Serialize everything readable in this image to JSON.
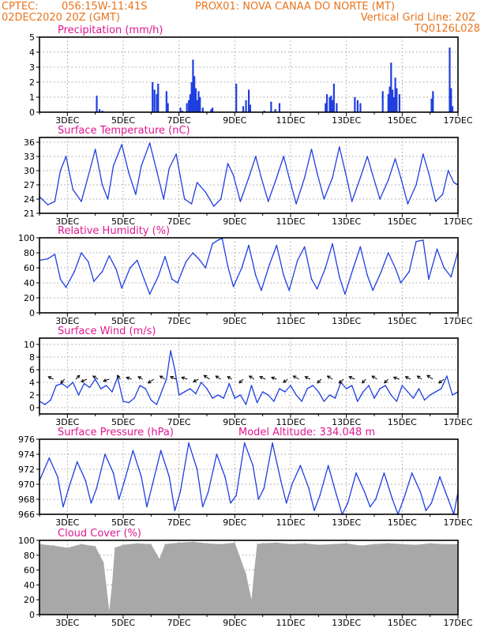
{
  "header": {
    "org": "CPTEC:",
    "coords": "056:15W-11:41S",
    "station": "PROX01: NOVA CANAA DO NORTE (MT)",
    "datetime": "02DEC2020 20Z (GMT)",
    "grid_note": "Vertical Grid Line: 20Z",
    "code": "TQ0126L028"
  },
  "colors": {
    "header": "#e8741c",
    "title": "#e01890",
    "series": "#1f3fe0",
    "cloud": "#a8a8a8",
    "grid": "#a0a0a0"
  },
  "chart_data": [
    {
      "type": "bar",
      "title": "Precipitation (mm/h)",
      "xlabel": "",
      "ylabel": "",
      "x_range": [
        2.0,
        17.0
      ],
      "ylim": [
        0,
        5
      ],
      "yticks": [
        0,
        1,
        2,
        3,
        4,
        5
      ],
      "xticks": [
        "3DEC",
        "5DEC",
        "7DEC",
        "9DEC",
        "11DEC",
        "13DEC",
        "15DEC",
        "17DEC"
      ],
      "grid": true,
      "x": [
        4.05,
        4.15,
        4.25,
        6.05,
        6.12,
        6.2,
        6.25,
        6.55,
        6.6,
        7.05,
        7.12,
        7.28,
        7.35,
        7.4,
        7.45,
        7.5,
        7.55,
        7.6,
        7.65,
        7.7,
        7.75,
        7.85,
        8.15,
        8.2,
        9.05,
        9.3,
        9.4,
        9.5,
        9.55,
        10.05,
        10.3,
        10.45,
        10.6,
        12.25,
        12.3,
        12.4,
        12.45,
        12.5,
        12.55,
        12.65,
        13.3,
        13.4,
        13.5,
        14.3,
        14.5,
        14.55,
        14.6,
        14.65,
        14.7,
        14.75,
        14.8,
        14.9,
        16.05,
        16.1,
        16.7,
        16.75,
        16.8
      ],
      "values": [
        1.1,
        0.2,
        0.1,
        2.0,
        1.5,
        1.2,
        1.9,
        1.4,
        0.6,
        0.3,
        0.1,
        0.6,
        0.8,
        1.2,
        2.0,
        3.5,
        2.4,
        1.6,
        0.8,
        1.4,
        1.0,
        0.3,
        0.2,
        0.3,
        1.9,
        0.4,
        0.8,
        1.5,
        0.5,
        0.1,
        0.7,
        0.2,
        0.6,
        0.6,
        1.2,
        1.0,
        1.1,
        0.8,
        1.9,
        0.6,
        1.0,
        0.8,
        0.6,
        1.4,
        1.2,
        1.7,
        3.3,
        1.5,
        1.0,
        2.3,
        1.6,
        1.2,
        0.9,
        1.4,
        4.3,
        1.6,
        0.4
      ]
    },
    {
      "type": "line",
      "title": "Surface Temperature (nC)",
      "xlabel": "",
      "ylabel": "",
      "x_range": [
        2.0,
        17.0
      ],
      "ylim": [
        21,
        37
      ],
      "yticks": [
        21,
        24,
        27,
        30,
        33,
        36
      ],
      "xticks": [
        "3DEC",
        "5DEC",
        "7DEC",
        "9DEC",
        "11DEC",
        "13DEC",
        "15DEC",
        "17DEC"
      ],
      "grid": true,
      "x": [
        2.0,
        2.3,
        2.55,
        2.75,
        2.95,
        3.2,
        3.5,
        3.8,
        4.0,
        4.25,
        4.45,
        4.65,
        4.95,
        5.2,
        5.45,
        5.65,
        5.95,
        6.2,
        6.45,
        6.65,
        6.9,
        7.2,
        7.45,
        7.65,
        7.95,
        8.25,
        8.5,
        8.75,
        8.95,
        9.2,
        9.5,
        9.75,
        9.95,
        10.2,
        10.5,
        10.75,
        10.95,
        11.2,
        11.5,
        11.75,
        11.95,
        12.2,
        12.5,
        12.75,
        12.95,
        13.2,
        13.5,
        13.75,
        13.95,
        14.2,
        14.5,
        14.75,
        14.95,
        15.2,
        15.5,
        15.75,
        15.95,
        16.2,
        16.45,
        16.65,
        16.85,
        17.0
      ],
      "values": [
        24.5,
        22.8,
        23.5,
        30.0,
        33.0,
        26.0,
        23.5,
        30.0,
        34.5,
        27.0,
        24.0,
        31.0,
        35.5,
        29.5,
        25.0,
        31.0,
        35.8,
        30.0,
        24.0,
        30.5,
        33.5,
        24.0,
        23.0,
        27.5,
        25.5,
        22.5,
        24.0,
        31.5,
        29.0,
        23.5,
        28.5,
        33.0,
        28.5,
        23.5,
        28.5,
        33.0,
        28.5,
        23.0,
        28.5,
        34.5,
        29.5,
        24.0,
        28.5,
        35.0,
        30.0,
        23.5,
        28.5,
        33.0,
        29.0,
        24.0,
        28.0,
        32.5,
        28.5,
        23.0,
        27.0,
        33.5,
        29.5,
        23.5,
        25.0,
        30.0,
        27.5,
        27.0
      ]
    },
    {
      "type": "line",
      "title": "Relative Humidity (%)",
      "xlabel": "",
      "ylabel": "",
      "x_range": [
        2.0,
        17.0
      ],
      "ylim": [
        0,
        100
      ],
      "yticks": [
        0,
        20,
        40,
        60,
        80,
        100
      ],
      "xticks": [
        "3DEC",
        "5DEC",
        "7DEC",
        "9DEC",
        "11DEC",
        "13DEC",
        "15DEC",
        "17DEC"
      ],
      "grid": true,
      "x": [
        2.0,
        2.3,
        2.55,
        2.75,
        2.95,
        3.25,
        3.5,
        3.75,
        3.95,
        4.25,
        4.5,
        4.75,
        4.95,
        5.25,
        5.5,
        5.75,
        5.95,
        6.25,
        6.5,
        6.75,
        6.95,
        7.25,
        7.5,
        7.75,
        7.95,
        8.2,
        8.4,
        8.55,
        8.75,
        8.95,
        9.25,
        9.5,
        9.75,
        9.95,
        10.25,
        10.5,
        10.75,
        10.95,
        11.25,
        11.5,
        11.75,
        11.95,
        12.25,
        12.5,
        12.75,
        12.95,
        13.25,
        13.5,
        13.75,
        13.95,
        14.25,
        14.5,
        14.75,
        14.95,
        15.25,
        15.5,
        15.75,
        15.95,
        16.25,
        16.5,
        16.75,
        17.0
      ],
      "values": [
        70,
        72,
        78,
        45,
        34,
        55,
        80,
        68,
        42,
        55,
        76,
        58,
        33,
        60,
        70,
        45,
        25,
        48,
        75,
        45,
        40,
        68,
        80,
        70,
        60,
        92,
        97,
        99,
        62,
        35,
        60,
        90,
        50,
        30,
        65,
        90,
        50,
        30,
        70,
        88,
        45,
        32,
        60,
        92,
        48,
        25,
        60,
        88,
        50,
        30,
        55,
        80,
        60,
        40,
        55,
        95,
        97,
        45,
        85,
        60,
        48,
        82
      ]
    },
    {
      "type": "line",
      "title": "Surface Wind (m/s)",
      "xlabel": "",
      "ylabel": "",
      "x_range": [
        2.0,
        17.0
      ],
      "ylim": [
        -1,
        11
      ],
      "yticks": [
        0,
        2,
        4,
        6,
        8,
        10
      ],
      "xticks": [
        "3DEC",
        "5DEC",
        "7DEC",
        "9DEC",
        "11DEC",
        "13DEC",
        "15DEC",
        "17DEC"
      ],
      "grid": true,
      "x": [
        2.0,
        2.2,
        2.4,
        2.6,
        2.8,
        3.0,
        3.2,
        3.4,
        3.6,
        3.8,
        4.0,
        4.2,
        4.4,
        4.6,
        4.8,
        5.0,
        5.2,
        5.4,
        5.6,
        5.8,
        6.0,
        6.2,
        6.4,
        6.55,
        6.7,
        6.85,
        7.0,
        7.2,
        7.4,
        7.6,
        7.8,
        8.0,
        8.2,
        8.4,
        8.6,
        8.8,
        9.0,
        9.2,
        9.4,
        9.6,
        9.8,
        10.0,
        10.2,
        10.4,
        10.6,
        10.8,
        11.0,
        11.2,
        11.4,
        11.6,
        11.8,
        12.0,
        12.2,
        12.4,
        12.6,
        12.8,
        13.0,
        13.2,
        13.4,
        13.6,
        13.8,
        14.0,
        14.2,
        14.4,
        14.6,
        14.8,
        15.0,
        15.2,
        15.4,
        15.6,
        15.8,
        16.0,
        16.2,
        16.4,
        16.6,
        16.8,
        17.0
      ],
      "values": [
        1.0,
        0.5,
        1.2,
        3.5,
        3.8,
        3.2,
        4.0,
        2.0,
        3.8,
        3.2,
        4.5,
        3.0,
        3.5,
        2.5,
        4.8,
        1.0,
        0.8,
        1.5,
        3.5,
        3.0,
        1.2,
        0.5,
        2.8,
        4.5,
        9.0,
        6.0,
        2.0,
        2.5,
        3.0,
        2.2,
        4.0,
        3.0,
        1.5,
        2.0,
        1.5,
        3.8,
        1.5,
        2.0,
        0.5,
        3.5,
        0.8,
        2.5,
        2.0,
        1.0,
        3.0,
        2.5,
        3.5,
        2.0,
        1.0,
        3.0,
        3.5,
        2.5,
        1.0,
        2.0,
        1.5,
        4.0,
        3.0,
        3.5,
        1.0,
        2.5,
        3.5,
        1.5,
        3.0,
        3.5,
        2.0,
        1.0,
        3.5,
        2.5,
        1.5,
        3.0,
        1.2,
        2.0,
        2.5,
        3.0,
        5.0,
        2.0,
        2.5
      ],
      "vectors": {
        "x": [
          2.5,
          2.9,
          3.3,
          3.7,
          4.1,
          4.5,
          4.9,
          5.3,
          5.7,
          6.1,
          6.5,
          6.9,
          7.3,
          7.7,
          8.1,
          8.5,
          8.9,
          9.3,
          9.7,
          10.1,
          10.5,
          10.9,
          11.3,
          11.7,
          12.1,
          12.5,
          12.9,
          13.3,
          13.7,
          14.1,
          14.5,
          14.9,
          15.3,
          15.7,
          16.1,
          16.5
        ],
        "u": [
          -0.8,
          -0.6,
          0.6,
          -0.9,
          -0.8,
          -0.9,
          -0.5,
          -0.8,
          -0.7,
          -0.9,
          -0.8,
          -0.9,
          -0.9,
          -0.8,
          -0.9,
          -0.8,
          -0.7,
          -0.6,
          -0.8,
          -0.9,
          -0.8,
          -0.7,
          -0.9,
          -0.8,
          -0.6,
          -0.8,
          -0.7,
          -0.9,
          -0.6,
          -0.8,
          -0.6,
          -0.9,
          -0.8,
          -0.7,
          -0.9,
          -0.8
        ],
        "v": [
          0.4,
          -0.6,
          0.6,
          -0.4,
          0.5,
          -0.3,
          0.6,
          0.3,
          0.4,
          -0.6,
          0.5,
          0.4,
          0.3,
          -0.4,
          0.6,
          0.5,
          0.4,
          -0.6,
          0.5,
          0.4,
          0.3,
          -0.5,
          0.5,
          0.4,
          -0.6,
          0.5,
          -0.6,
          0.4,
          -0.6,
          0.5,
          -0.6,
          0.3,
          0.4,
          0.5,
          0.6,
          -0.6
        ]
      }
    },
    {
      "type": "line",
      "title": "Surface Pressure (hPa)",
      "annotation": "Model Altitude: 334.048 m",
      "xlabel": "",
      "ylabel": "",
      "x_range": [
        2.0,
        17.0
      ],
      "ylim": [
        966,
        976
      ],
      "yticks": [
        966,
        968,
        970,
        972,
        974,
        976
      ],
      "xticks": [
        "3DEC",
        "5DEC",
        "7DEC",
        "9DEC",
        "11DEC",
        "13DEC",
        "15DEC",
        "17DEC"
      ],
      "grid": true,
      "x": [
        2.0,
        2.35,
        2.65,
        2.85,
        3.05,
        3.35,
        3.65,
        3.85,
        4.05,
        4.35,
        4.65,
        4.85,
        5.05,
        5.35,
        5.65,
        5.85,
        6.05,
        6.35,
        6.65,
        6.85,
        7.05,
        7.35,
        7.65,
        7.85,
        8.05,
        8.35,
        8.65,
        8.85,
        9.05,
        9.35,
        9.65,
        9.85,
        10.05,
        10.35,
        10.65,
        10.85,
        11.05,
        11.35,
        11.65,
        11.85,
        12.05,
        12.35,
        12.65,
        12.85,
        13.05,
        13.35,
        13.65,
        13.85,
        14.05,
        14.35,
        14.65,
        14.85,
        15.05,
        15.35,
        15.65,
        15.85,
        16.05,
        16.35,
        16.65,
        16.85,
        17.0
      ],
      "values": [
        970.5,
        973.5,
        971.0,
        967.0,
        969.5,
        973.0,
        970.5,
        967.5,
        969.5,
        974.0,
        971.5,
        968.0,
        970.5,
        974.5,
        971.0,
        967.0,
        970.0,
        974.5,
        971.0,
        966.5,
        969.0,
        975.5,
        972.0,
        967.0,
        969.0,
        974.0,
        971.0,
        967.5,
        968.5,
        975.5,
        972.5,
        968.0,
        969.5,
        975.5,
        970.5,
        967.5,
        970.0,
        972.5,
        969.5,
        966.5,
        968.5,
        972.5,
        968.5,
        966.0,
        967.5,
        971.5,
        969.0,
        967.0,
        968.0,
        971.5,
        968.0,
        966.0,
        968.0,
        971.5,
        969.0,
        966.5,
        967.5,
        971.0,
        968.0,
        966.0,
        969.0
      ]
    },
    {
      "type": "bar",
      "title": "Cloud Cover (%)",
      "xlabel": "",
      "ylabel": "",
      "x_range": [
        2.0,
        17.0
      ],
      "ylim": [
        0,
        100
      ],
      "yticks": [
        0,
        20,
        40,
        60,
        80,
        100
      ],
      "xticks": [
        "3DEC",
        "5DEC",
        "7DEC",
        "9DEC",
        "11DEC",
        "13DEC",
        "15DEC",
        "17DEC"
      ],
      "grid": true,
      "x": [
        2.0,
        2.5,
        3.0,
        3.5,
        4.0,
        4.3,
        4.5,
        4.6,
        4.7,
        5.0,
        5.5,
        6.0,
        6.3,
        6.5,
        7.0,
        7.5,
        8.0,
        8.5,
        9.0,
        9.4,
        9.6,
        9.7,
        9.8,
        10.0,
        10.5,
        11.0,
        11.5,
        12.0,
        12.5,
        13.0,
        13.5,
        14.0,
        14.5,
        15.0,
        15.5,
        16.0,
        16.5,
        17.0
      ],
      "values": [
        95,
        93,
        90,
        95,
        92,
        70,
        5,
        40,
        90,
        94,
        96,
        95,
        75,
        95,
        97,
        98,
        96,
        95,
        97,
        55,
        20,
        60,
        95,
        96,
        97,
        95,
        96,
        94,
        95,
        96,
        93,
        95,
        96,
        95,
        94,
        96,
        95,
        95
      ]
    }
  ]
}
